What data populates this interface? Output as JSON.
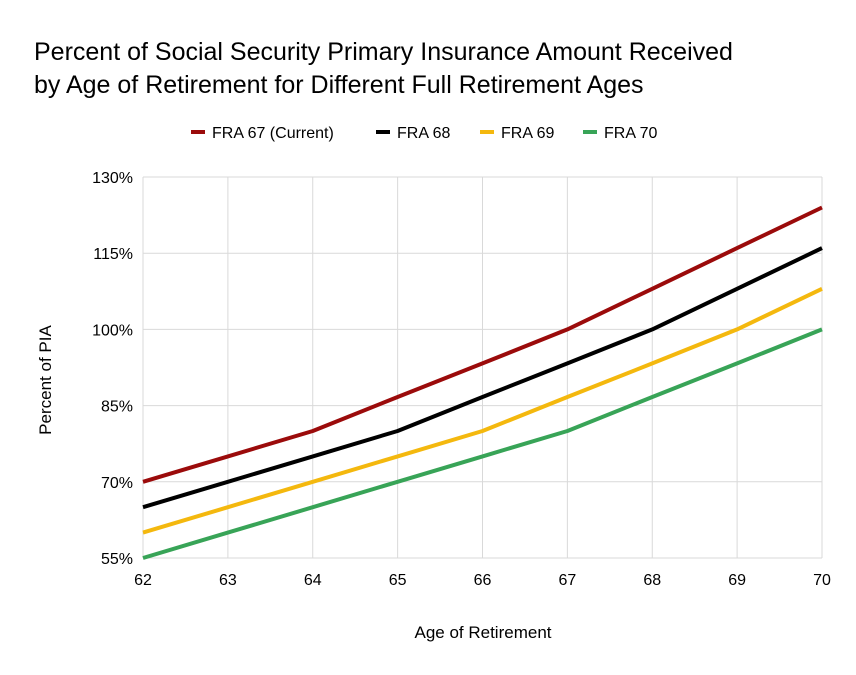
{
  "chart_data": {
    "type": "line",
    "title_lines": [
      "Percent of Social Security Primary Insurance Amount Received",
      "by Age of Retirement for Different Full Retirement Ages"
    ],
    "xlabel": "Age of Retirement",
    "ylabel": "Percent of PIA",
    "x": [
      62,
      63,
      64,
      65,
      66,
      67,
      68,
      69,
      70
    ],
    "x_tick_labels": [
      "62",
      "63",
      "64",
      "65",
      "66",
      "67",
      "68",
      "69",
      "70"
    ],
    "xlim": [
      62,
      70
    ],
    "ylim": [
      55,
      130
    ],
    "y_ticks": [
      55,
      70,
      85,
      100,
      115,
      130
    ],
    "y_tick_labels": [
      "55%",
      "70%",
      "85%",
      "100%",
      "115%",
      "130%"
    ],
    "grid": true,
    "legend_position": "top",
    "series": [
      {
        "name": "FRA 67 (Current)",
        "color": "#9b0b0b",
        "values": [
          70,
          75,
          80,
          86.7,
          93.3,
          100,
          108,
          116,
          124
        ]
      },
      {
        "name": "FRA 68",
        "color": "#000000",
        "values": [
          65,
          70,
          75,
          80,
          86.7,
          93.3,
          100,
          108,
          116
        ]
      },
      {
        "name": "FRA 69",
        "color": "#f4b80e",
        "values": [
          60,
          65,
          70,
          75,
          80,
          86.7,
          93.3,
          100,
          108
        ]
      },
      {
        "name": "FRA 70",
        "color": "#38a457",
        "values": [
          55,
          60,
          65,
          70,
          75,
          80,
          86.7,
          93.3,
          100
        ]
      }
    ]
  }
}
